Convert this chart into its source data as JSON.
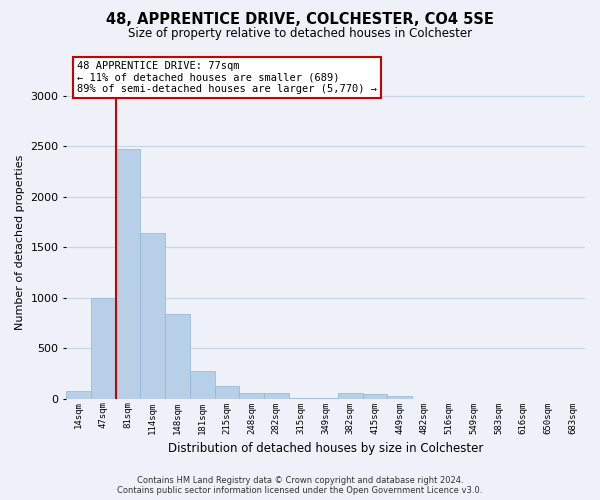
{
  "title1": "48, APPRENTICE DRIVE, COLCHESTER, CO4 5SE",
  "title2": "Size of property relative to detached houses in Colchester",
  "xlabel": "Distribution of detached houses by size in Colchester",
  "ylabel": "Number of detached properties",
  "categories": [
    "14sqm",
    "47sqm",
    "81sqm",
    "114sqm",
    "148sqm",
    "181sqm",
    "215sqm",
    "248sqm",
    "282sqm",
    "315sqm",
    "349sqm",
    "382sqm",
    "415sqm",
    "449sqm",
    "482sqm",
    "516sqm",
    "549sqm",
    "583sqm",
    "616sqm",
    "650sqm",
    "683sqm"
  ],
  "values": [
    75,
    1000,
    2470,
    1640,
    840,
    270,
    130,
    60,
    55,
    5,
    5,
    55,
    45,
    30,
    0,
    0,
    0,
    0,
    0,
    0,
    0
  ],
  "bar_color": "#b8cfe8",
  "bar_edge_color": "#90b4d8",
  "red_line_color": "#cc0000",
  "annotation_line1": "48 APPRENTICE DRIVE: 77sqm",
  "annotation_line2": "← 11% of detached houses are smaller (689)",
  "annotation_line3": "89% of semi-detached houses are larger (5,770) →",
  "annotation_box_color": "#ffffff",
  "annotation_box_edge_color": "#cc0000",
  "ylim": [
    0,
    3100
  ],
  "yticks": [
    0,
    500,
    1000,
    1500,
    2000,
    2500,
    3000
  ],
  "grid_color": "#c8d4e8",
  "footer1": "Contains HM Land Registry data © Crown copyright and database right 2024.",
  "footer2": "Contains public sector information licensed under the Open Government Licence v3.0.",
  "bg_color": "#eef2f8"
}
